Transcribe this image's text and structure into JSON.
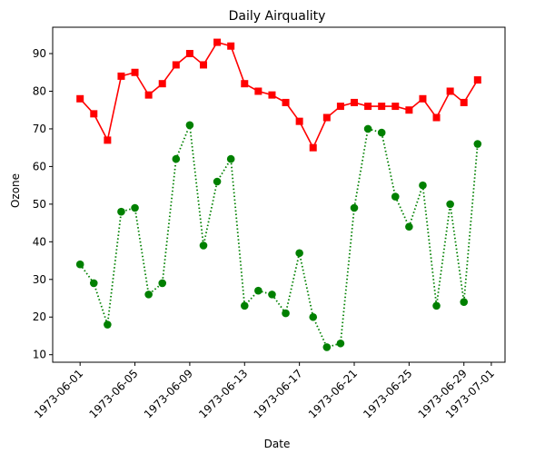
{
  "chart_data": {
    "type": "line",
    "title": "Daily Airquality",
    "xlabel": "Date",
    "ylabel": "Ozone",
    "x_ticks": [
      "1973-06-01",
      "1973-06-05",
      "1973-06-09",
      "1973-06-13",
      "1973-06-17",
      "1973-06-21",
      "1973-06-25",
      "1973-06-29",
      "1973-07-01"
    ],
    "y_ticks": [
      10,
      20,
      30,
      40,
      50,
      60,
      70,
      80,
      90
    ],
    "x_range": [
      "1973-05-30",
      "1973-07-02"
    ],
    "ylim": [
      8,
      97
    ],
    "grid": false,
    "legend": "none",
    "dates": [
      "1973-06-01",
      "1973-06-02",
      "1973-06-03",
      "1973-06-04",
      "1973-06-05",
      "1973-06-06",
      "1973-06-07",
      "1973-06-08",
      "1973-06-09",
      "1973-06-10",
      "1973-06-11",
      "1973-06-12",
      "1973-06-13",
      "1973-06-14",
      "1973-06-15",
      "1973-06-16",
      "1973-06-17",
      "1973-06-18",
      "1973-06-19",
      "1973-06-20",
      "1973-06-21",
      "1973-06-22",
      "1973-06-23",
      "1973-06-24",
      "1973-06-25",
      "1973-06-26",
      "1973-06-27",
      "1973-06-28",
      "1973-06-29",
      "1973-06-30"
    ],
    "series": [
      {
        "color": "#ff0000",
        "line_style": "solid",
        "marker": "square",
        "values": [
          78,
          74,
          67,
          84,
          85,
          79,
          82,
          87,
          90,
          87,
          93,
          92,
          82,
          80,
          79,
          77,
          72,
          65,
          73,
          76,
          77,
          76,
          76,
          76,
          75,
          78,
          73,
          80,
          77,
          83
        ]
      },
      {
        "color": "#008000",
        "line_style": "dotted",
        "marker": "circle",
        "values": [
          34,
          29,
          18,
          48,
          49,
          26,
          29,
          62,
          71,
          39,
          56,
          62,
          23,
          27,
          26,
          21,
          37,
          20,
          12,
          13,
          49,
          70,
          69,
          52,
          44,
          55,
          23,
          50,
          24,
          66
        ]
      }
    ]
  }
}
